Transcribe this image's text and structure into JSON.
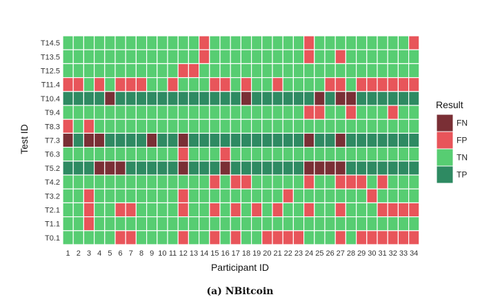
{
  "caption": "(a) NBitcoin",
  "chart_data": {
    "type": "heatmap",
    "xlabel": "Participant ID",
    "ylabel": "Test ID",
    "legend_title": "Result",
    "legend_position": "right",
    "categories_x": [
      "1",
      "2",
      "3",
      "4",
      "5",
      "6",
      "7",
      "8",
      "9",
      "10",
      "11",
      "12",
      "13",
      "14",
      "15",
      "16",
      "17",
      "18",
      "19",
      "20",
      "21",
      "22",
      "23",
      "24",
      "25",
      "26",
      "27",
      "28",
      "29",
      "30",
      "31",
      "32",
      "33",
      "34"
    ],
    "categories_y": [
      "T14.5",
      "T13.5",
      "T12.5",
      "T11.4",
      "T10.4",
      "T9.4",
      "T8.3",
      "T7.3",
      "T6.3",
      "T5.2",
      "T4.2",
      "T3.2",
      "T2.1",
      "T1.1",
      "T0.1"
    ],
    "result_codes": {
      "N": "TN",
      "P": "FP",
      "F": "FN",
      "T": "TP"
    },
    "colors": {
      "FN": "#7a2f35",
      "FP": "#e8555a",
      "TN": "#57cd72",
      "TP": "#2e8a62"
    },
    "legend": [
      "FN",
      "FP",
      "TN",
      "TP"
    ],
    "rows": [
      "NNNNNNNNNNNNNPNNNNNNNNNPNNNNNNNNNP",
      "NNNNNNNNNNNNNPNNNNNNNNNPNNPNNNNNNN",
      "NNNNNNNNNNNPPNNNNNNNNNNNNNNNNNNNNN",
      "PPNPNPPPNNPNNNPPNPNNPNNNNPPNPPPPPP",
      "TTTTFTTTTTTTTTTTTFTTTTTTFTFFTTTTTT",
      "NNNNNNNNNNNNNNNNNNNNNNNPPNNPNNNPNN",
      "PNPNNNNNNNNNNNNNNNNNNNNNNNNNNNNNNN",
      "FTFFTTTTFTTFTTTTTTTTTTTFTTFTTTTTTT",
      "NNNNNNNNNNNPNNNPNNNNNNNNNNNNNNNNNN",
      "TTTFFFTTTTTFTTTFTTTTTTTFFFFTTTTTTT",
      "NNNNNNNNNNNNNNPNPPNNNNNPNNPPPNPNNN",
      "NNPNNNNNNNNPNNNNNNNNNPNNNNNNNPNNNN",
      "NNPNNPPNNNNPNNPNPNPNPNNPNNPNNNPPPP",
      "NNPNNNNNNNNNNNNNNNNNNNNNNNNNNNNNNN",
      "NNNNNPPNNNNPNNPNPNNPPPPNNNPNPPPPPP"
    ]
  }
}
